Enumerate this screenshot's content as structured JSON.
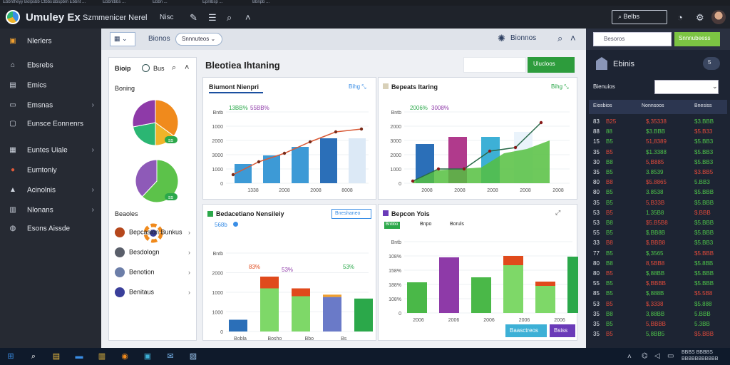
{
  "browser_tabs": [
    "Ebbntheyy Bolpsbb Ctbbs ...",
    "Bbspbm Ebbnt ...",
    "Ebbntbbs ...",
    "Ebbn ...",
    "Epnlbsp ...",
    "Bbnpb ..."
  ],
  "titlebar": {
    "title": "Umuley Ex",
    "subtitle": "Szmmenicer Nerel",
    "menu_item": "Nisc",
    "search_label": "Belbs",
    "icons": [
      "wrench-icon",
      "hamburger-icon",
      "search-icon",
      "chevron-up-icon",
      "clock-icon",
      "gear-icon",
      "avatar"
    ]
  },
  "sidebar": {
    "items": [
      {
        "label": "Nlerlers",
        "icon": "box-icon",
        "icon_color": "#f0a030",
        "chevron": false
      },
      {
        "label": "Ebsrebs",
        "icon": "home-icon",
        "icon_color": "#d0d6e0",
        "chevron": false
      },
      {
        "label": "Emics",
        "icon": "document-icon",
        "icon_color": "#d0d6e0",
        "chevron": false
      },
      {
        "label": "Emsnas",
        "icon": "inbox-icon",
        "icon_color": "#d0d6e0",
        "chevron": true
      },
      {
        "label": "Eunsce Eonnenrs",
        "icon": "window-icon",
        "icon_color": "#d0d6e0",
        "chevron": false
      },
      {
        "label": "Euntes Uiale",
        "icon": "grid-icon",
        "icon_color": "#d0d6e0",
        "chevron": true
      },
      {
        "label": "Eumtoniy",
        "icon": "alert-icon",
        "icon_color": "#e05a3a",
        "chevron": false
      },
      {
        "label": "Acinolnis",
        "icon": "chart-icon",
        "icon_color": "#d0d6e0",
        "chevron": true
      },
      {
        "label": "Nlonans",
        "icon": "folder-icon",
        "icon_color": "#d0d6e0",
        "chevron": true
      },
      {
        "label": "Esons Aissde",
        "icon": "globe-icon",
        "icon_color": "#d0d6e0",
        "chevron": false
      }
    ]
  },
  "topbar": {
    "view_label": "",
    "crumb": "Bionos",
    "pill": "Snnnuteos",
    "gear_label": "Bionnos"
  },
  "right_top": {
    "search": "Besoros",
    "button": "Snnnubeess"
  },
  "left_panel": {
    "title": "Bioip",
    "count": "Bus",
    "section1": "Boning",
    "section2": "Beaoles",
    "items": [
      {
        "label": "Bepcasion Bunkus",
        "color": "#b5471c"
      },
      {
        "label": "Besdologn",
        "color": "#5a5f6a"
      },
      {
        "label": "Benotion",
        "color": "#6c7ea8"
      },
      {
        "label": "Benitaus",
        "color": "#3a3f9a"
      }
    ]
  },
  "main": {
    "title": "Bleotiea Ihtaning",
    "button": "Ulucloos"
  },
  "pie_charts": [
    {
      "slices": [
        {
          "value": 35,
          "color": "#f08a1c"
        },
        {
          "value": 15,
          "color": "#f0b429"
        },
        {
          "value": 22,
          "color": "#2bb673"
        },
        {
          "value": 28,
          "color": "#8e3aa8"
        }
      ],
      "badge": "ss"
    },
    {
      "slices": [
        {
          "value": 62,
          "color": "#5cc24a"
        },
        {
          "value": 38,
          "color": "#8e5ab8"
        }
      ],
      "badge": "ss"
    }
  ],
  "chart1": {
    "title": "Biumont Nienpri",
    "link": "Bihg",
    "legend": [
      {
        "label": "13BB%",
        "color": "#2ba84a"
      },
      {
        "label": "55BB%",
        "color": "#8e3aa8"
      }
    ],
    "chart_data": {
      "type": "bar",
      "ytick_labels": [
        "Bntb",
        "1000",
        "2000",
        "3000",
        "1000",
        "0"
      ],
      "xtick_labels": [
        "1338",
        "2008",
        "2008",
        "8008"
      ],
      "bars": [
        {
          "value": 0.27,
          "color": "#3d9ad6"
        },
        {
          "value": 0.39,
          "color": "#3d9ad6"
        },
        {
          "value": 0.51,
          "color": "#3d9ad6"
        },
        {
          "value": 0.63,
          "color": "#2b6fb8"
        },
        {
          "value": 0.63,
          "color": "#dce9f6"
        }
      ],
      "line": {
        "color": "#d85a36",
        "values": [
          0.12,
          0.3,
          0.42,
          0.58,
          0.72,
          0.76
        ]
      }
    }
  },
  "chart2": {
    "title": "Bepeats Itaring",
    "link": "Bihg",
    "legend": [
      {
        "label": "2006%",
        "color": "#2ba84a"
      },
      {
        "label": "3008%",
        "color": "#8e3aa8"
      }
    ],
    "chart_data": {
      "type": "bar",
      "ytick_labels": [
        "Bntb",
        "2000",
        "3000",
        "2000",
        "1000",
        "0"
      ],
      "xtick_labels": [
        "2008",
        "2008",
        "2008",
        "2008",
        "2008"
      ],
      "bars": [
        {
          "value": 0.55,
          "color": "#2b6fb8"
        },
        {
          "value": 0.65,
          "color": "#b03a8c"
        },
        {
          "value": 0.65,
          "color": "#3db0d6"
        },
        {
          "value": 0.72,
          "color": "#eaf3fb"
        }
      ],
      "area": {
        "color": "#55c040",
        "values": [
          0.03,
          0.18,
          0.2,
          0.22,
          0.42,
          0.48,
          0.6
        ]
      },
      "line": {
        "color": "#2a6a4a",
        "values": [
          0.03,
          0.2,
          0.2,
          0.45,
          0.5,
          0.85
        ]
      }
    }
  },
  "chart3": {
    "title": "Bedacetiano Nensileiy",
    "chip": "Bneshaneo",
    "subtitle": "568b",
    "pct_labels": [
      "83%",
      "53%",
      "53%"
    ],
    "chart_data": {
      "type": "bar",
      "ytick_labels": [
        "Bntb",
        "2000",
        "1000",
        "1000",
        "0"
      ],
      "xtick_labels": [
        "Bobla",
        "Bosho",
        "Bbo",
        "Bs"
      ],
      "bars": [
        {
          "base": {
            "value": 0.15,
            "color": "#2b6fb8"
          },
          "top": null
        },
        {
          "base": {
            "value": 0.55,
            "color": "#7ed868"
          },
          "top": {
            "value": 0.15,
            "color": "#e04a1c"
          }
        },
        {
          "base": {
            "value": 0.45,
            "color": "#7ed868"
          },
          "top": {
            "value": 0.1,
            "color": "#e04a1c"
          }
        },
        {
          "base": {
            "value": 0.44,
            "color": "#6a7ac8"
          },
          "top": {
            "value": 0.03,
            "color": "#f0a030"
          }
        },
        {
          "base": {
            "value": 0.42,
            "color": "#2ba84a"
          },
          "top": null
        }
      ]
    }
  },
  "chart4": {
    "title": "Bepcon Yois",
    "tabs": [
      "Bnbbo",
      "Bnpo",
      "Boruls"
    ],
    "ytick_labels": [
      "Bntb",
      "108%",
      "158%",
      "188%",
      "108%",
      "0"
    ],
    "xtick_labels": [
      "2006",
      "2006",
      "2006",
      "2006",
      "2006",
      "2006"
    ],
    "chart_data": {
      "type": "bar",
      "bars": [
        {
          "base": {
            "value": 0.43,
            "color": "#4ab848"
          },
          "top": null
        },
        {
          "base": {
            "value": 0.78,
            "color": "#8e3aa8"
          },
          "top": null
        },
        {
          "base": {
            "value": 0.5,
            "color": "#4ab848"
          },
          "top": null
        },
        {
          "base": {
            "value": 0.67,
            "color": "#7ed868"
          },
          "top": {
            "value": 0.13,
            "color": "#e04a1c"
          }
        },
        {
          "base": {
            "value": 0.38,
            "color": "#7ed868"
          },
          "top": {
            "value": 0.06,
            "color": "#e04a1c"
          }
        },
        {
          "base": {
            "value": 0.79,
            "color": "#2ba84a"
          },
          "top": null
        }
      ]
    },
    "buttons": [
      {
        "label": "Baasctreos",
        "color": "#3db0d6"
      },
      {
        "label": "Bsiss",
        "color": "#6a3ab8"
      }
    ]
  },
  "right_panel": {
    "title": "Ebinis",
    "badge": "5",
    "label": "Bienuios",
    "select_value": "",
    "columns": [
      "Eiosbios",
      "Nonnsoos",
      "Bnesiss"
    ],
    "rows": [
      [
        "83",
        "B25",
        "$,35338",
        "$3.BBB"
      ],
      [
        "88",
        "88",
        "$3.BBB",
        "$5.B33"
      ],
      [
        "15",
        "B5",
        "51,8389",
        "$5.BB3"
      ],
      [
        "35",
        "B5",
        "$1.3388",
        "$5.BB3"
      ],
      [
        "30",
        "B8",
        "5,B885",
        "$5.BB3"
      ],
      [
        "35",
        "B5",
        "3.8539",
        "$3.BB5"
      ],
      [
        "80",
        "B8",
        "$5.8865",
        "5.BB3"
      ],
      [
        "80",
        "B5",
        "3.8538",
        "$5.BBB"
      ],
      [
        "35",
        "B5",
        "5,B33B",
        "$5.BBB"
      ],
      [
        "53",
        "B5",
        "1.35B8",
        "$.BBB"
      ],
      [
        "53",
        "B8",
        "$5.B5B8",
        "$5.BBB"
      ],
      [
        "55",
        "B5",
        "$,BB8B",
        "$5.BBB"
      ],
      [
        "33",
        "B8",
        "$,BBB8",
        "$5.BB3"
      ],
      [
        "77",
        "B5",
        "$,3565",
        "$5.BBB"
      ],
      [
        "80",
        "B8",
        "8,5BB8",
        "$5.8BB"
      ],
      [
        "80",
        "B5",
        "$,88BB",
        "$5.BBB"
      ],
      [
        "55",
        "B5",
        "$,BBBB",
        "$5.BBB"
      ],
      [
        "85",
        "B5",
        "$,888B",
        "$5.5B8"
      ],
      [
        "53",
        "B5",
        "$,3338",
        "$5.888"
      ],
      [
        "35",
        "B8",
        "3,88BB",
        "5.BBB"
      ],
      [
        "35",
        "B5",
        "5,BBBB",
        "5.3BB"
      ],
      [
        "35",
        "B5",
        "5,8BB5",
        "$5.BBB"
      ]
    ],
    "row_colors": [
      "#e8ecf3",
      "#4ec44a",
      "#e04a3a"
    ]
  },
  "taskbar": {
    "icons": [
      "start-icon",
      "search-icon",
      "folder-icon",
      "mail-icon",
      "explorer-icon",
      "browser-icon",
      "store-icon",
      "mail-app-icon",
      "photos-icon"
    ],
    "tray_line1": "BBBS BBBBS",
    "tray_line2": "BBBBBBBBBBB"
  }
}
